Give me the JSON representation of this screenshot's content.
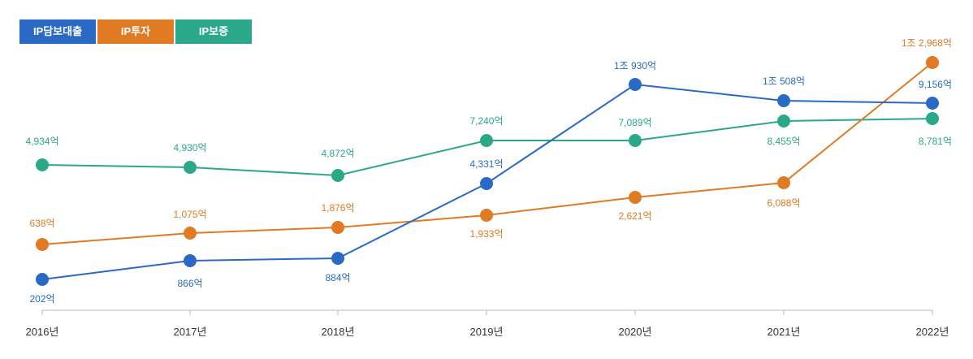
{
  "legend": [
    {
      "name": "IP담보대출",
      "color": "#2a6ac4"
    },
    {
      "name": "IP투자",
      "color": "#e07a23"
    },
    {
      "name": "IP보증",
      "color": "#2ba88a"
    }
  ],
  "chart_data": {
    "type": "line",
    "categories": [
      "2016년",
      "2017년",
      "2018년",
      "2019년",
      "2020년",
      "2021년",
      "2022년"
    ],
    "unit": "억",
    "legend_position": "top-left",
    "grid": false,
    "series": [
      {
        "name": "IP담보대출",
        "color": "#2a6ac4",
        "values": [
          202,
          866,
          884,
          4331,
          10930,
          10508,
          9156
        ],
        "labels": [
          "202억",
          "866억",
          "884억",
          "4,331억",
          "1조 930억",
          "1조 508억",
          "9,156억"
        ]
      },
      {
        "name": "IP투자",
        "color": "#e07a23",
        "values": [
          638,
          1075,
          1876,
          1933,
          2621,
          6088,
          12968
        ],
        "labels": [
          "638억",
          "1,075억",
          "1,876억",
          "1,933억",
          "2,621억",
          "6,088억",
          "1조 2,968억"
        ]
      },
      {
        "name": "IP보증",
        "color": "#2ba88a",
        "values": [
          4934,
          4930,
          4872,
          7240,
          7089,
          8455,
          8781
        ],
        "labels": [
          "4,934억",
          "4,930억",
          "4,872억",
          "7,240억",
          "7,089억",
          "8,455억",
          "8,781억"
        ]
      }
    ]
  }
}
